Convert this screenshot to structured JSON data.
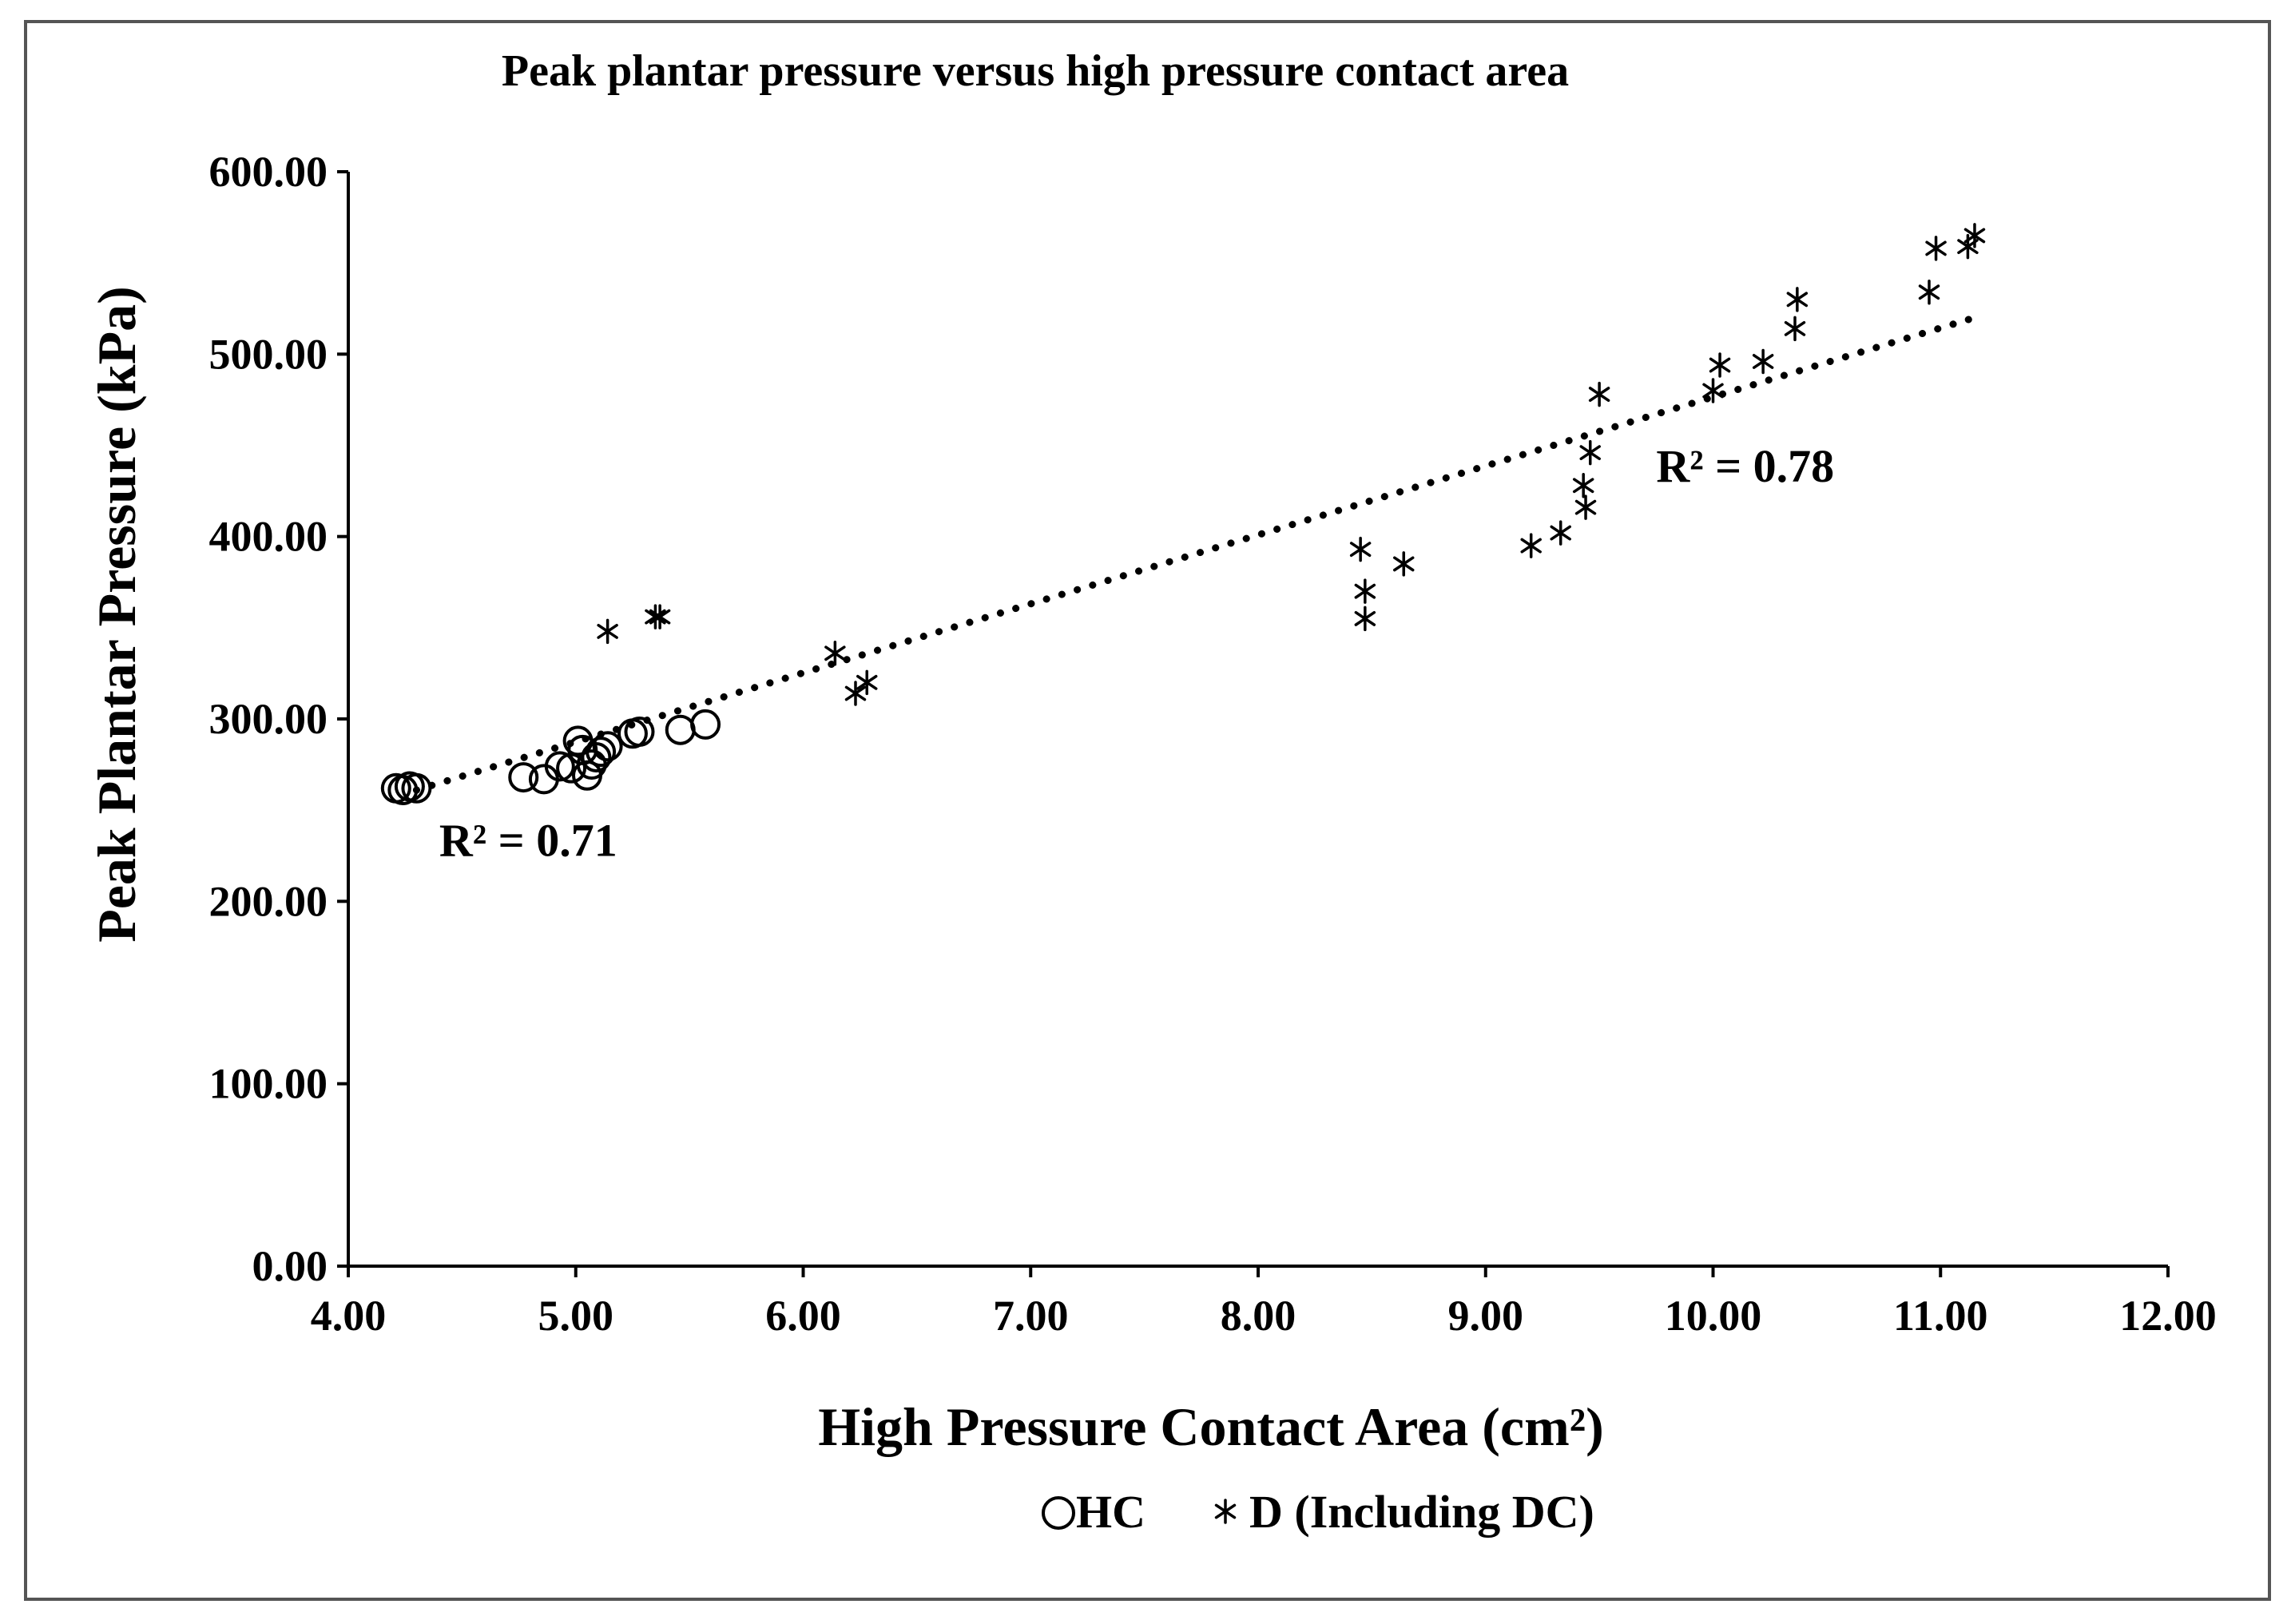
{
  "chart_data": {
    "type": "scatter",
    "title": "Peak plantar pressure versus high pressure contact area",
    "xlabel": "High Pressure Contact Area (cm²)",
    "ylabel": "Peak Plantar Pressure (kPa)",
    "xlim": [
      4.0,
      12.0
    ],
    "ylim": [
      0.0,
      600.0
    ],
    "x_ticks": [
      "4.00",
      "5.00",
      "6.00",
      "7.00",
      "8.00",
      "9.00",
      "10.00",
      "11.00",
      "12.00"
    ],
    "y_ticks": [
      "0.00",
      "100.00",
      "200.00",
      "300.00",
      "400.00",
      "500.00",
      "600.00"
    ],
    "series": [
      {
        "name": "HC",
        "marker": "circle",
        "points": [
          [
            4.21,
            262
          ],
          [
            4.24,
            261
          ],
          [
            4.27,
            263
          ],
          [
            4.3,
            262
          ],
          [
            4.77,
            268
          ],
          [
            4.86,
            267
          ],
          [
            4.93,
            274
          ],
          [
            4.98,
            273
          ],
          [
            5.01,
            288
          ],
          [
            5.03,
            283
          ],
          [
            5.05,
            269
          ],
          [
            5.07,
            275
          ],
          [
            5.09,
            279
          ],
          [
            5.11,
            282
          ],
          [
            5.14,
            285
          ],
          [
            5.25,
            292
          ],
          [
            5.28,
            293
          ],
          [
            5.46,
            294
          ],
          [
            5.57,
            297
          ]
        ]
      },
      {
        "name": "D (Including DC)",
        "marker": "asterisk",
        "points": [
          [
            5.14,
            348
          ],
          [
            5.35,
            356
          ],
          [
            5.37,
            356
          ],
          [
            6.14,
            336
          ],
          [
            6.23,
            314
          ],
          [
            6.28,
            320
          ],
          [
            8.45,
            393
          ],
          [
            8.47,
            370
          ],
          [
            8.47,
            355
          ],
          [
            8.64,
            385
          ],
          [
            9.2,
            395
          ],
          [
            9.33,
            402
          ],
          [
            9.43,
            428
          ],
          [
            9.44,
            416
          ],
          [
            9.46,
            446
          ],
          [
            9.5,
            478
          ],
          [
            10.0,
            480
          ],
          [
            10.03,
            494
          ],
          [
            10.22,
            496
          ],
          [
            10.36,
            514
          ],
          [
            10.37,
            530
          ],
          [
            10.95,
            534
          ],
          [
            10.98,
            558
          ],
          [
            11.12,
            559
          ],
          [
            11.15,
            565
          ]
        ]
      }
    ],
    "trendline": {
      "style": "dotted",
      "x_range": [
        4.3,
        11.15
      ],
      "start_y": 261,
      "end_y": 520
    },
    "annotations": [
      {
        "text": "R² = 0.71",
        "x": 4.4,
        "y": 225
      },
      {
        "text": "R² = 0.78",
        "x": 9.75,
        "y": 430
      }
    ],
    "legend": {
      "position": "bottom-center",
      "entries": [
        {
          "label": "HC",
          "marker": "circle"
        },
        {
          "label": "D (Including DC)",
          "marker": "asterisk"
        }
      ]
    },
    "colors": {
      "marker": "#000000",
      "axis": "#000000",
      "frame": "#555555"
    }
  }
}
